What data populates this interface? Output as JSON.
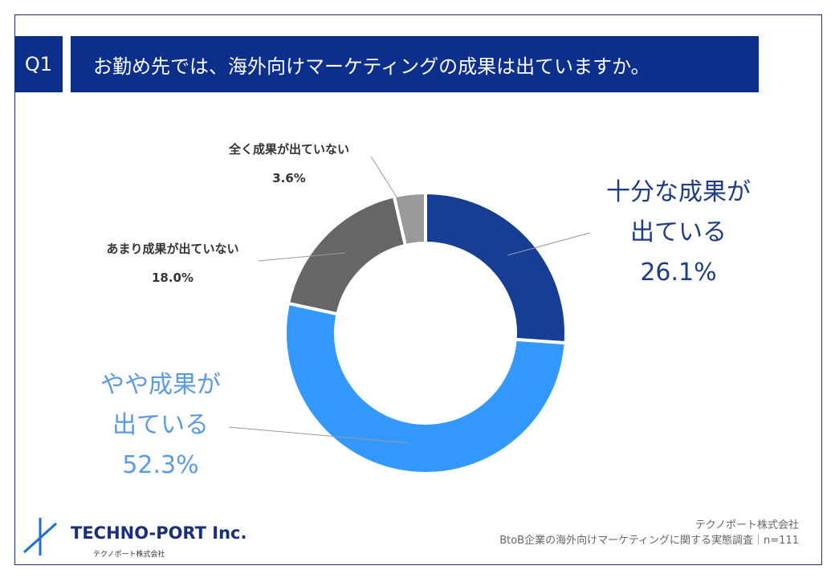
{
  "header": {
    "badge": "Q1",
    "question": "お勤め先では、海外向けマーケティングの成果は出ていますか。"
  },
  "chart_data": {
    "type": "donut",
    "categories": [
      "十分な成果が\n出ている",
      "やや成果が\n出ている",
      "あまり成果が出ていない",
      "全く成果が出ていない"
    ],
    "values": [
      26.1,
      52.3,
      18.0,
      3.6
    ],
    "value_labels": [
      "26.1%",
      "52.3%",
      "18.0%",
      "3.6%"
    ],
    "colors": [
      "#173e94",
      "#3399ff",
      "#666666",
      "#999999"
    ]
  },
  "footer": {
    "logo": "TECHNO-PORT Inc.",
    "logo_sub": "テクノポート株式会社",
    "company": "テクノポート株式会社",
    "source": "BtoB企業の海外向けマーケティングに関する実態調査｜n=111"
  }
}
